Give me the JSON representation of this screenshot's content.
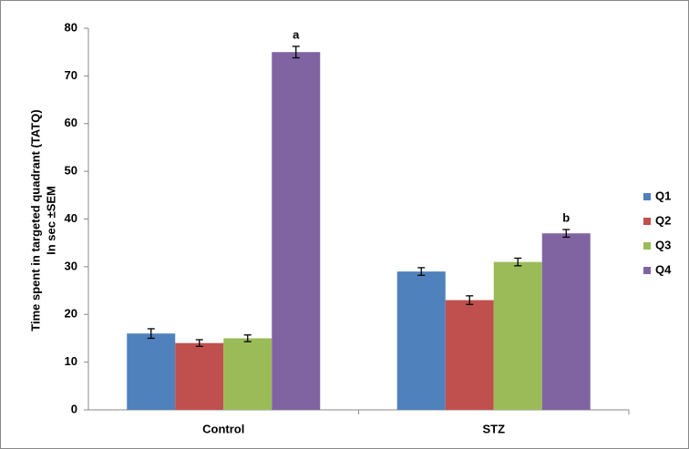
{
  "chart_data": {
    "type": "bar",
    "ylabel": [
      "Time spent in targeted quadrant (TATQ)",
      "In sec ±SEM"
    ],
    "categories": [
      "Control",
      "STZ"
    ],
    "series": [
      {
        "name": "Q1",
        "color": "#4f81bd",
        "values": [
          16,
          29
        ],
        "errors": [
          1,
          0.8
        ]
      },
      {
        "name": "Q2",
        "color": "#c0504d",
        "values": [
          14,
          23
        ],
        "errors": [
          0.7,
          0.9
        ]
      },
      {
        "name": "Q3",
        "color": "#9bbb59",
        "values": [
          15,
          31
        ],
        "errors": [
          0.7,
          0.8
        ]
      },
      {
        "name": "Q4",
        "color": "#8064a2",
        "values": [
          75,
          37
        ],
        "errors": [
          1.2,
          0.8
        ],
        "annotations": [
          "a",
          "b"
        ]
      }
    ],
    "ylim": [
      0,
      80
    ],
    "yticks": [
      0,
      10,
      20,
      30,
      40,
      50,
      60,
      70,
      80
    ],
    "grid": false,
    "legend": "right"
  }
}
